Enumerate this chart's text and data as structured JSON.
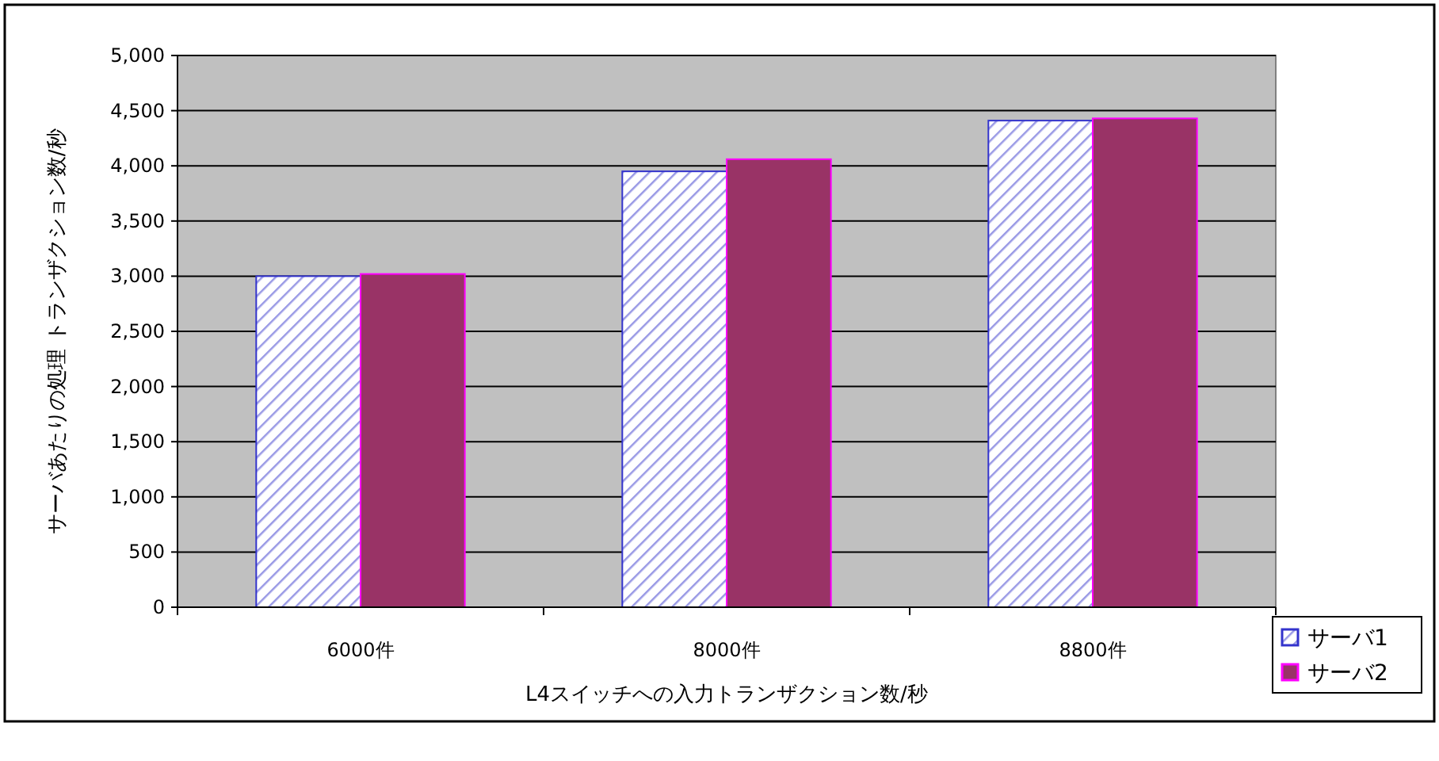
{
  "chart_data": {
    "type": "bar",
    "xlabel": "L4スイッチへの入力トランザクション数/秒",
    "ylabel": "サーバあたりの処理 トランザクション数/秒",
    "categories": [
      "6000件",
      "8000件",
      "8800件"
    ],
    "series": [
      {
        "name": "サーバ1",
        "color": "#3333cc",
        "values": [
          3000,
          3950,
          4410
        ]
      },
      {
        "name": "サーバ2",
        "color": "#993366",
        "values": [
          3020,
          4060,
          4430
        ]
      }
    ],
    "ylim": [
      0,
      5000
    ],
    "yticks": [
      {
        "value": 0,
        "label": "0"
      },
      {
        "value": 500,
        "label": "500"
      },
      {
        "value": 1000,
        "label": "1,000"
      },
      {
        "value": 1500,
        "label": "1,500"
      },
      {
        "value": 2000,
        "label": "2,000"
      },
      {
        "value": 2500,
        "label": "2,500"
      },
      {
        "value": 3000,
        "label": "3,000"
      },
      {
        "value": 3500,
        "label": "3,500"
      },
      {
        "value": 4000,
        "label": "4,000"
      },
      {
        "value": 4500,
        "label": "4,500"
      },
      {
        "value": 5000,
        "label": "5,000"
      }
    ],
    "grid": "y",
    "legend": "bottom right"
  }
}
